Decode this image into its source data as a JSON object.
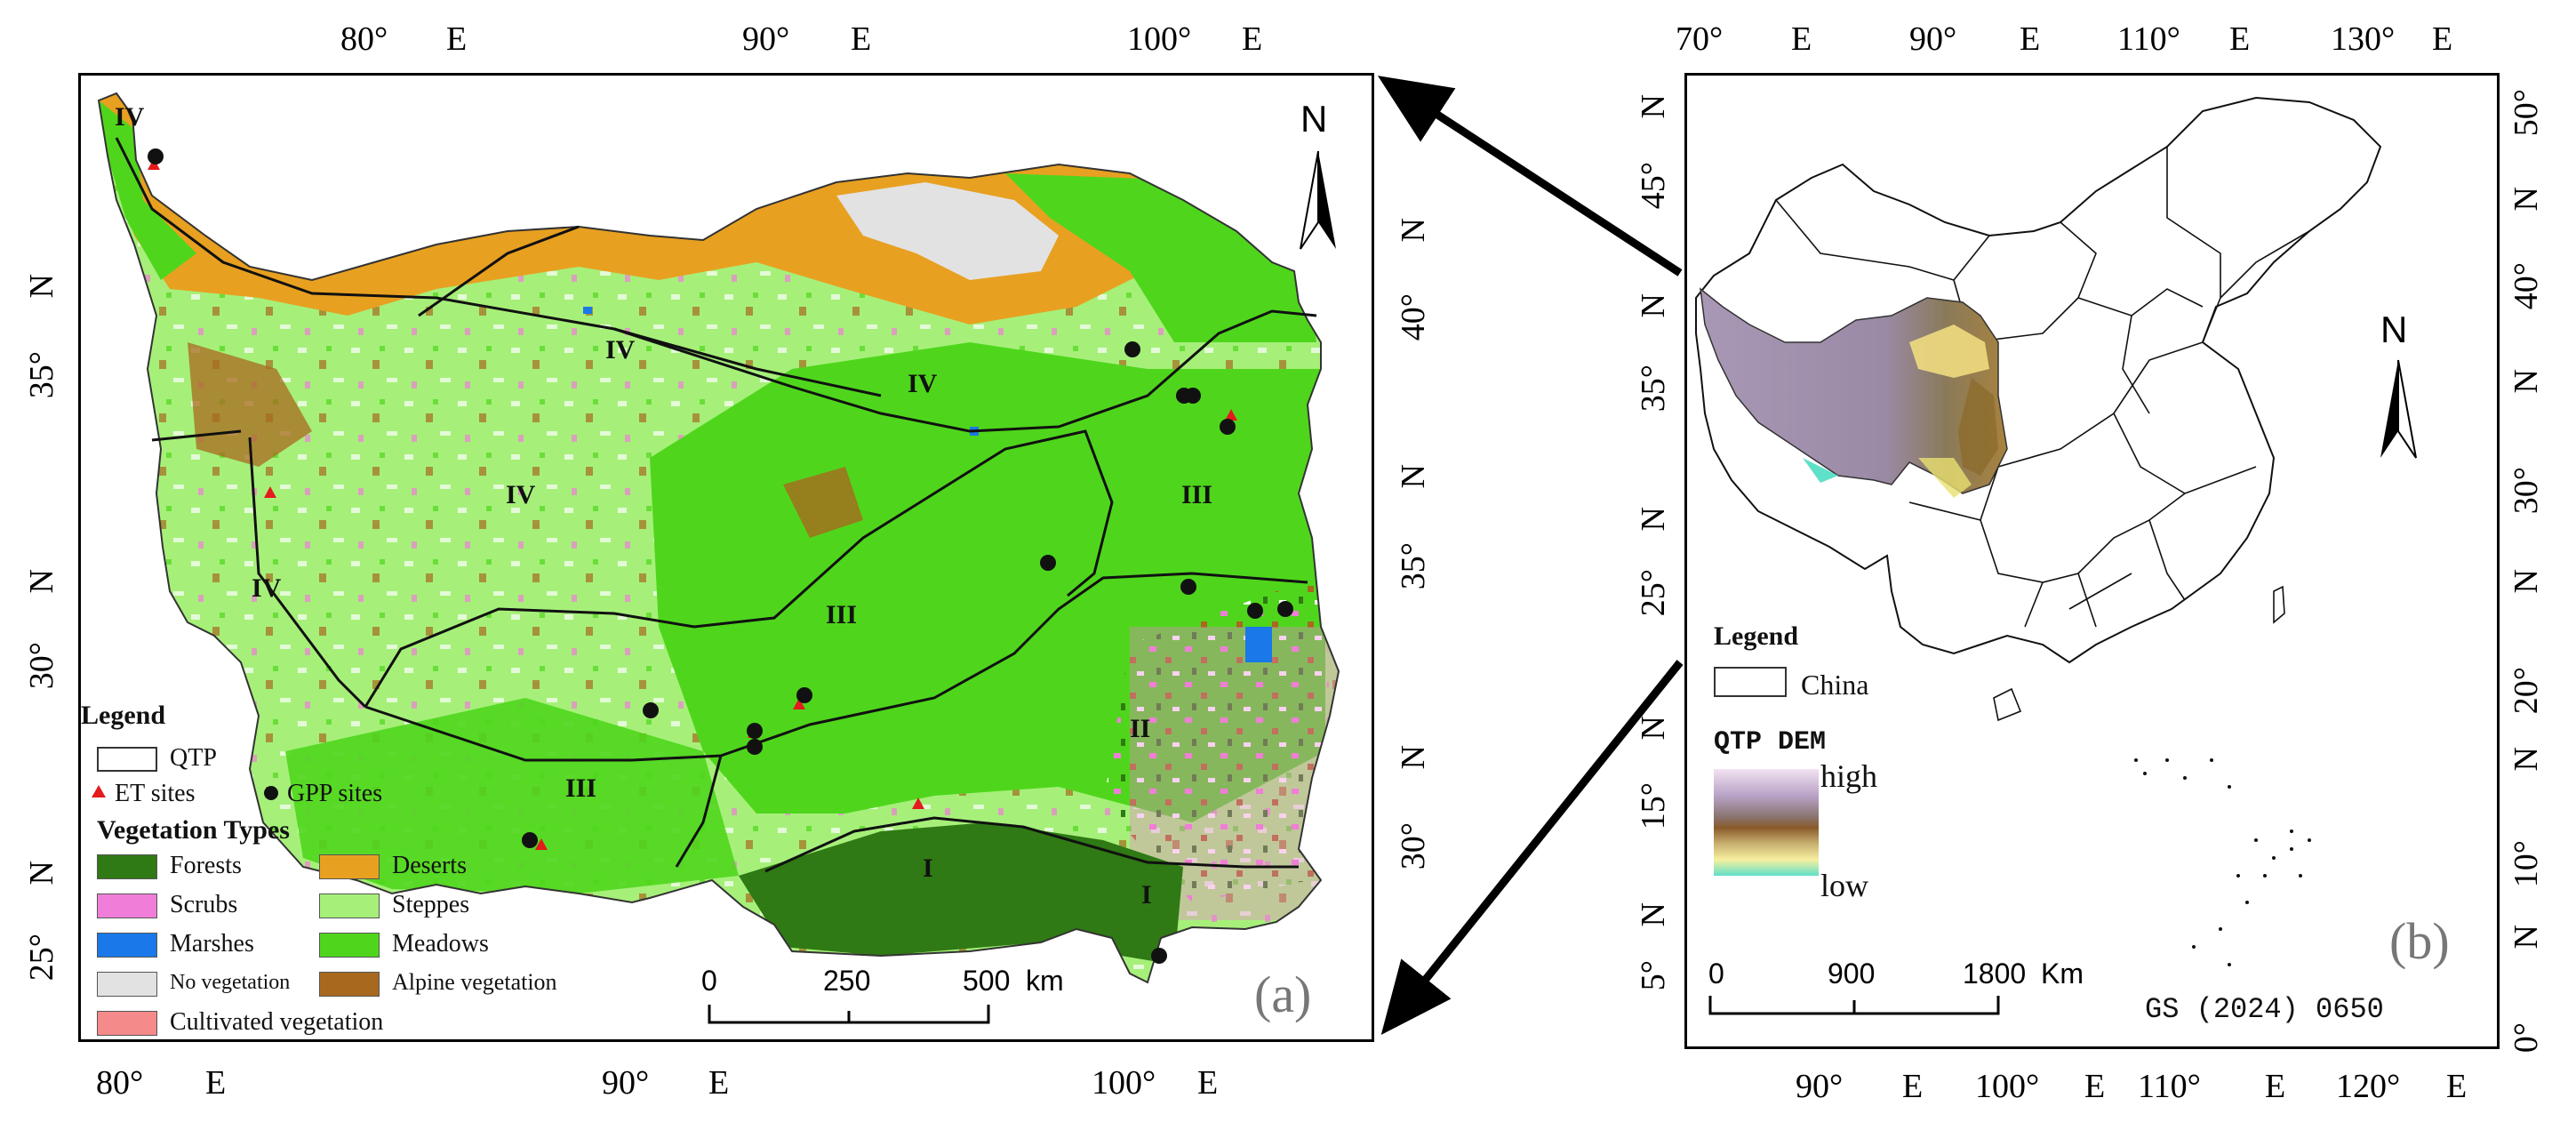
{
  "panel_a": {
    "label": "(a)",
    "top_axis": [
      "80°",
      "E",
      "90°",
      "E",
      "100°",
      "E"
    ],
    "bottom_axis": [
      "80°",
      "E",
      "90°",
      "E",
      "100°",
      "E"
    ],
    "left_axis": [
      "N",
      "35°",
      "N",
      "30°",
      "N",
      "25°"
    ],
    "right_axis": [
      "N",
      "40°",
      "N",
      "35°",
      "N",
      "30°"
    ],
    "north": "N",
    "regions": [
      "IV",
      "IV",
      "IV",
      "IV",
      "IV",
      "III",
      "III",
      "III",
      "II",
      "I",
      "I"
    ],
    "legend": {
      "title": "Legend",
      "qtp": "QTP",
      "et_sites": "ET sites",
      "gpp_sites": "GPP sites",
      "veg_title": "Vegetation Types",
      "types": [
        {
          "name": "Forests",
          "color": "#2f7a14"
        },
        {
          "name": "Deserts",
          "color": "#e8a020"
        },
        {
          "name": "Scrubs",
          "color": "#f07ed8"
        },
        {
          "name": "Steppes",
          "color": "#a6f07a"
        },
        {
          "name": "Marshes",
          "color": "#1a78e8"
        },
        {
          "name": "Meadows",
          "color": "#4fd61c"
        },
        {
          "name": "No vegetation",
          "color": "#e2e2e2"
        },
        {
          "name": "Alpine vegetation",
          "color": "#a8691e"
        },
        {
          "name": "Cultivated vegetation",
          "color": "#f58a8a"
        }
      ]
    },
    "scale": {
      "labels": [
        "0",
        "250",
        "500"
      ],
      "unit": "km"
    }
  },
  "panel_b": {
    "label": "(b)",
    "top_axis": [
      "70°",
      "E",
      "90°",
      "E",
      "110°",
      "E",
      "130°",
      "E"
    ],
    "bottom_axis": [
      "90°",
      "E",
      "100°",
      "E",
      "110°",
      "E",
      "120°",
      "E"
    ],
    "left_axis": [
      "N",
      "45°",
      "N",
      "35°",
      "N",
      "25°",
      "N",
      "15°",
      "N",
      "5°"
    ],
    "right_axis": [
      "50°",
      "N",
      "40°",
      "N",
      "30°",
      "N",
      "20°",
      "N",
      "10°",
      "N",
      "0°"
    ],
    "north": "N",
    "legend": {
      "title": "Legend",
      "china": "China",
      "dem_title": "QTP DEM",
      "high": "high",
      "low": "low"
    },
    "scale": {
      "labels": [
        "0",
        "900",
        "1800"
      ],
      "unit": "Km"
    },
    "map_no": "GS (2024) 0650"
  }
}
